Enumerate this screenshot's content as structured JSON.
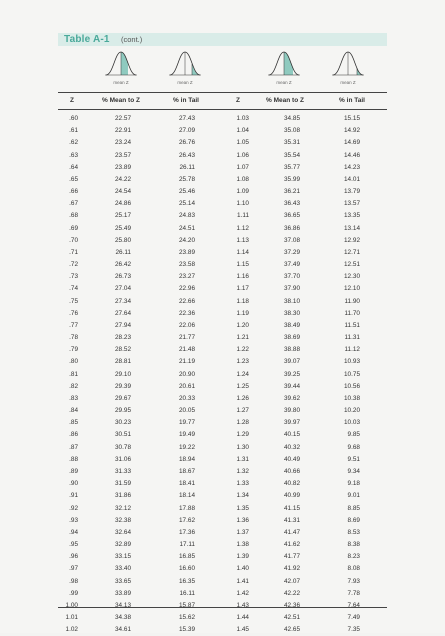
{
  "header": {
    "title": "Table A-1",
    "cont": "(cont.)"
  },
  "curves": [
    {
      "icon": "normal-curve-mean-to-z-icon",
      "caption": "mean  Z"
    },
    {
      "icon": "normal-curve-tail-icon",
      "caption": "mean  Z"
    },
    {
      "icon": "normal-curve-mean-to-z-icon",
      "caption": "mean  Z"
    },
    {
      "icon": "normal-curve-tail-icon",
      "caption": "mean  Z"
    }
  ],
  "columns": [
    "Z",
    "% Mean to Z",
    "% in Tail",
    "Z",
    "% Mean to Z",
    "% in Tail"
  ],
  "colors": {
    "accent": "#4aa99a",
    "header_band": "#d9ece8",
    "shade": "#8fcabf"
  },
  "rows": [
    [
      ".60",
      "22.57",
      "27.43",
      "1.03",
      "34.85",
      "15.15"
    ],
    [
      ".61",
      "22.91",
      "27.09",
      "1.04",
      "35.08",
      "14.92"
    ],
    [
      ".62",
      "23.24",
      "26.76",
      "1.05",
      "35.31",
      "14.69"
    ],
    [
      ".63",
      "23.57",
      "26.43",
      "1.06",
      "35.54",
      "14.46"
    ],
    [
      ".64",
      "23.89",
      "26.11",
      "1.07",
      "35.77",
      "14.23"
    ],
    [
      ".65",
      "24.22",
      "25.78",
      "1.08",
      "35.99",
      "14.01"
    ],
    [
      ".66",
      "24.54",
      "25.46",
      "1.09",
      "36.21",
      "13.79"
    ],
    [
      ".67",
      "24.86",
      "25.14",
      "1.10",
      "36.43",
      "13.57"
    ],
    [
      ".68",
      "25.17",
      "24.83",
      "1.11",
      "36.65",
      "13.35"
    ],
    [
      ".69",
      "25.49",
      "24.51",
      "1.12",
      "36.86",
      "13.14"
    ],
    [
      ".70",
      "25.80",
      "24.20",
      "1.13",
      "37.08",
      "12.92"
    ],
    [
      ".71",
      "26.11",
      "23.89",
      "1.14",
      "37.29",
      "12.71"
    ],
    [
      ".72",
      "26.42",
      "23.58",
      "1.15",
      "37.49",
      "12.51"
    ],
    [
      ".73",
      "26.73",
      "23.27",
      "1.16",
      "37.70",
      "12.30"
    ],
    [
      ".74",
      "27.04",
      "22.96",
      "1.17",
      "37.90",
      "12.10"
    ],
    [
      ".75",
      "27.34",
      "22.66",
      "1.18",
      "38.10",
      "11.90"
    ],
    [
      ".76",
      "27.64",
      "22.36",
      "1.19",
      "38.30",
      "11.70"
    ],
    [
      ".77",
      "27.94",
      "22.06",
      "1.20",
      "38.49",
      "11.51"
    ],
    [
      ".78",
      "28.23",
      "21.77",
      "1.21",
      "38.69",
      "11.31"
    ],
    [
      ".79",
      "28.52",
      "21.48",
      "1.22",
      "38.88",
      "11.12"
    ],
    [
      ".80",
      "28.81",
      "21.19",
      "1.23",
      "39.07",
      "10.93"
    ],
    [
      ".81",
      "29.10",
      "20.90",
      "1.24",
      "39.25",
      "10.75"
    ],
    [
      ".82",
      "29.39",
      "20.61",
      "1.25",
      "39.44",
      "10.56"
    ],
    [
      ".83",
      "29.67",
      "20.33",
      "1.26",
      "39.62",
      "10.38"
    ],
    [
      ".84",
      "29.95",
      "20.05",
      "1.27",
      "39.80",
      "10.20"
    ],
    [
      ".85",
      "30.23",
      "19.77",
      "1.28",
      "39.97",
      "10.03"
    ],
    [
      ".86",
      "30.51",
      "19.49",
      "1.29",
      "40.15",
      "9.85"
    ],
    [
      ".87",
      "30.78",
      "19.22",
      "1.30",
      "40.32",
      "9.68"
    ],
    [
      ".88",
      "31.06",
      "18.94",
      "1.31",
      "40.49",
      "9.51"
    ],
    [
      ".89",
      "31.33",
      "18.67",
      "1.32",
      "40.66",
      "9.34"
    ],
    [
      ".90",
      "31.59",
      "18.41",
      "1.33",
      "40.82",
      "9.18"
    ],
    [
      ".91",
      "31.86",
      "18.14",
      "1.34",
      "40.99",
      "9.01"
    ],
    [
      ".92",
      "32.12",
      "17.88",
      "1.35",
      "41.15",
      "8.85"
    ],
    [
      ".93",
      "32.38",
      "17.62",
      "1.36",
      "41.31",
      "8.69"
    ],
    [
      ".94",
      "32.64",
      "17.36",
      "1.37",
      "41.47",
      "8.53"
    ],
    [
      ".95",
      "32.89",
      "17.11",
      "1.38",
      "41.62",
      "8.38"
    ],
    [
      ".96",
      "33.15",
      "16.85",
      "1.39",
      "41.77",
      "8.23"
    ],
    [
      ".97",
      "33.40",
      "16.60",
      "1.40",
      "41.92",
      "8.08"
    ],
    [
      ".98",
      "33.65",
      "16.35",
      "1.41",
      "42.07",
      "7.93"
    ],
    [
      ".99",
      "33.89",
      "16.11",
      "1.42",
      "42.22",
      "7.78"
    ],
    [
      "1.00",
      "34.13",
      "15.87",
      "1.43",
      "42.36",
      "7.64"
    ],
    [
      "1.01",
      "34.38",
      "15.62",
      "1.44",
      "42.51",
      "7.49"
    ],
    [
      "1.02",
      "34.61",
      "15.39",
      "1.45",
      "42.65",
      "7.35"
    ]
  ]
}
